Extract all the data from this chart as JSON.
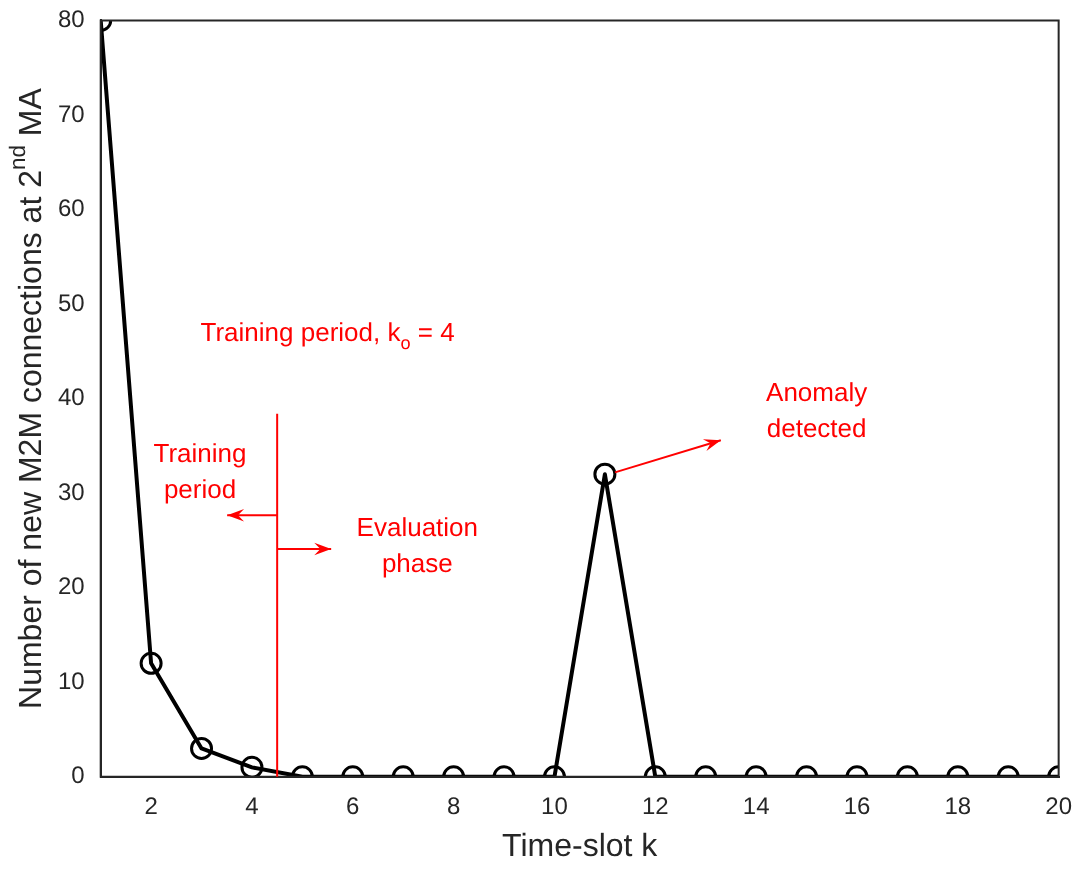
{
  "chart_data": {
    "type": "line",
    "xlabel": "Time-slot k",
    "ylabel": "Number of new M2M connections at 2$^{nd}$ MA",
    "x": [
      1,
      2,
      3,
      4,
      5,
      6,
      7,
      8,
      9,
      10,
      11,
      12,
      13,
      14,
      15,
      16,
      17,
      18,
      19,
      20
    ],
    "series": [
      {
        "color": "#000000",
        "values": [
          80,
          12,
          3,
          1,
          0,
          0,
          0,
          0,
          0,
          0,
          32,
          0,
          0,
          0,
          0,
          0,
          0,
          0,
          0,
          0
        ]
      }
    ],
    "xlim": [
      1,
      20
    ],
    "xticks": [
      2,
      4,
      6,
      8,
      10,
      12,
      14,
      16,
      18,
      20
    ],
    "ylim": [
      0,
      80
    ],
    "yticks": [
      0,
      10,
      20,
      30,
      40,
      50,
      60,
      70,
      80
    ],
    "grid": false,
    "legend": false,
    "marker": "circle",
    "line_style": "solid",
    "ref_lines": [
      {
        "axis": "x",
        "value": 4.5,
        "color": "#ff0000"
      }
    ],
    "annotations": [
      "Training period, k$_{o}$ = 4",
      "Training period",
      "Evaluation phase",
      "Anomaly detected"
    ]
  }
}
